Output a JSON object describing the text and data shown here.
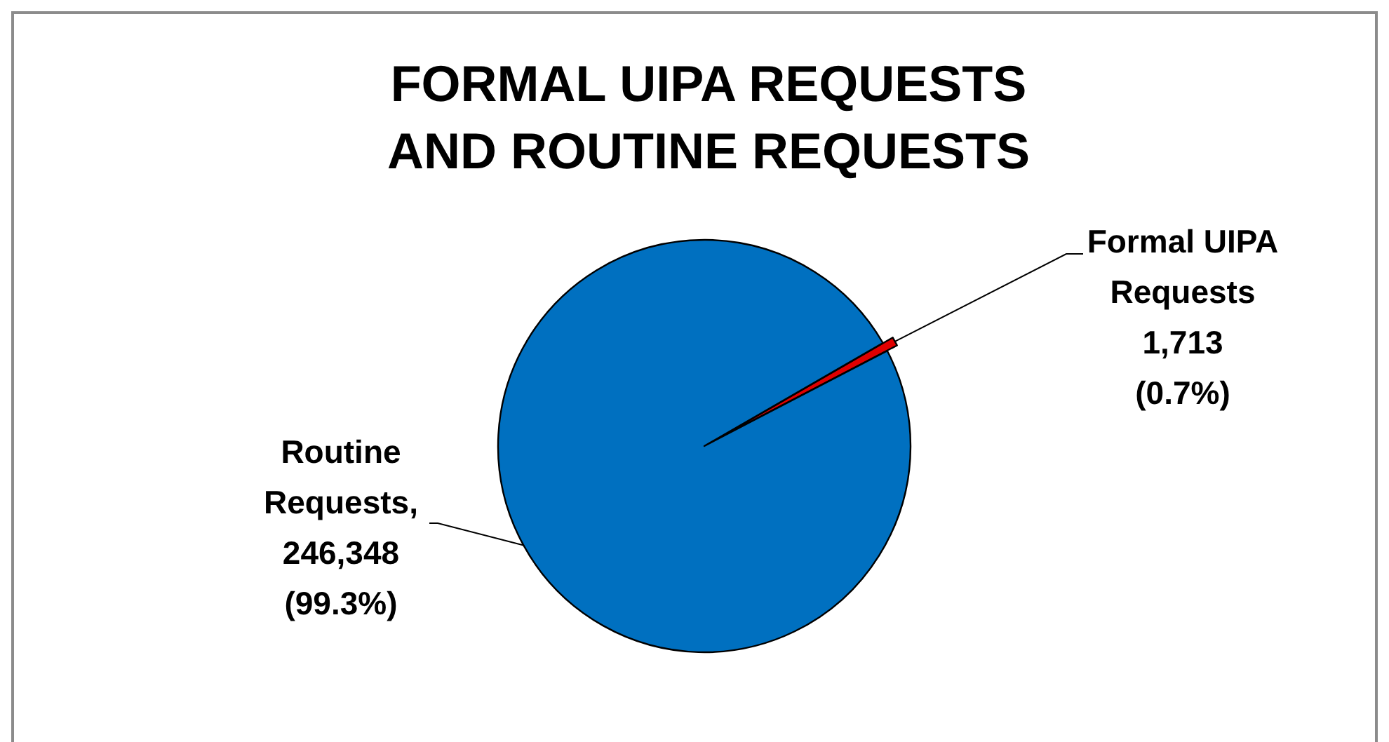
{
  "chart_data": {
    "type": "pie",
    "title": "FORMAL UIPA REQUESTS\nAND ROUTINE REQUESTS",
    "categories": [
      "Formal UIPA Requests",
      "Routine Requests"
    ],
    "values": [
      1713,
      246348
    ],
    "colors": [
      "#e00000",
      "#0070c0"
    ],
    "value_labels": [
      "1,713\n(0.7%)",
      ",\n246,348\n(99.3%)"
    ]
  }
}
